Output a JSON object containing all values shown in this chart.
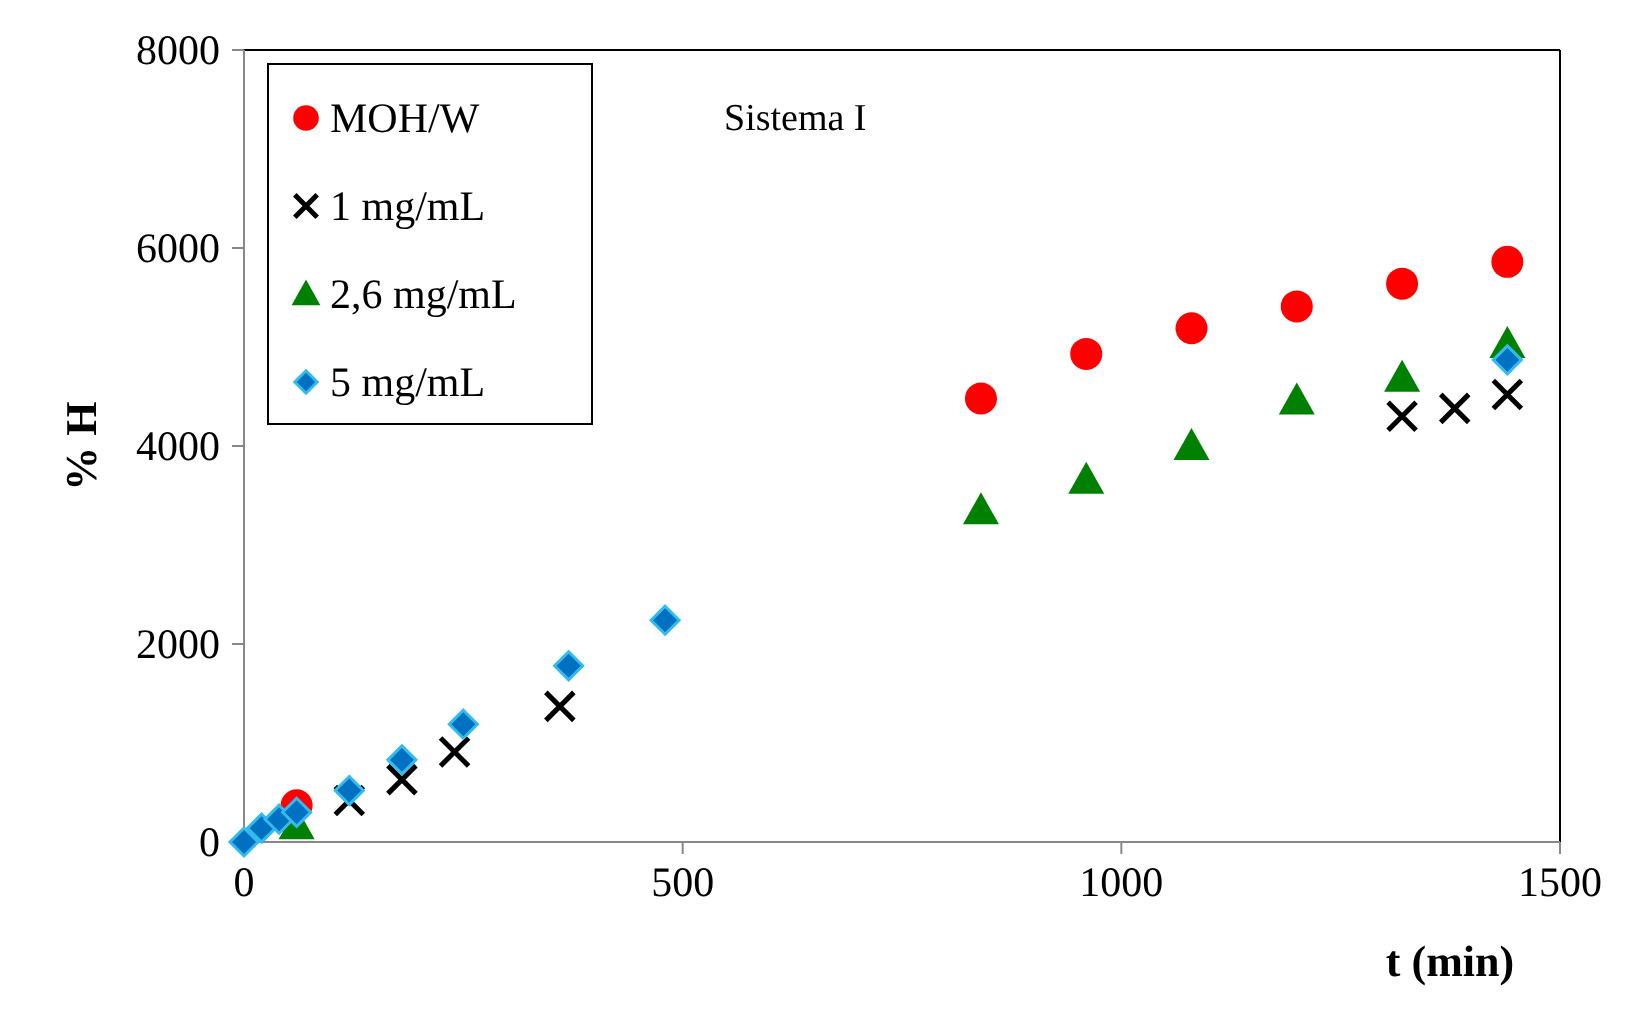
{
  "chart_data": {
    "type": "scatter",
    "xlabel": "t  (min)",
    "ylabel": "% H",
    "annotations": [
      "Sistema I"
    ],
    "xlim": [
      0,
      1500
    ],
    "xticks": [
      0,
      500,
      1000,
      1500
    ],
    "ylim": [
      0,
      8000
    ],
    "yticks": [
      0,
      2000,
      4000,
      6000,
      8000
    ],
    "grid": false,
    "legend": "top left",
    "series": [
      {
        "name": "MOH/W",
        "color": "#ff0000",
        "marker": "circle",
        "x": [
          60,
          840,
          960,
          1080,
          1200,
          1320,
          1440
        ],
        "values": [
          370,
          4480,
          4930,
          5190,
          5410,
          5640,
          5860
        ]
      },
      {
        "name": "1 mg/mL",
        "color": "#000000",
        "marker": "cross",
        "x": [
          120,
          180,
          240,
          360,
          1320,
          1380,
          1440
        ],
        "values": [
          420,
          630,
          910,
          1370,
          4300,
          4380,
          4520
        ]
      },
      {
        "name": "2,6 mg/mL",
        "color": "#008000",
        "marker": "triangle",
        "x": [
          60,
          840,
          960,
          1080,
          1200,
          1320,
          1440
        ],
        "values": [
          170,
          3350,
          3660,
          4000,
          4460,
          4690,
          5030
        ]
      },
      {
        "name": "5 mg/mL",
        "color": "#0070c0",
        "marker": "diamond",
        "x": [
          0,
          20,
          40,
          60,
          120,
          180,
          250,
          370,
          480,
          1440
        ],
        "values": [
          0,
          140,
          230,
          300,
          520,
          830,
          1190,
          1780,
          2240,
          4870
        ]
      }
    ]
  }
}
